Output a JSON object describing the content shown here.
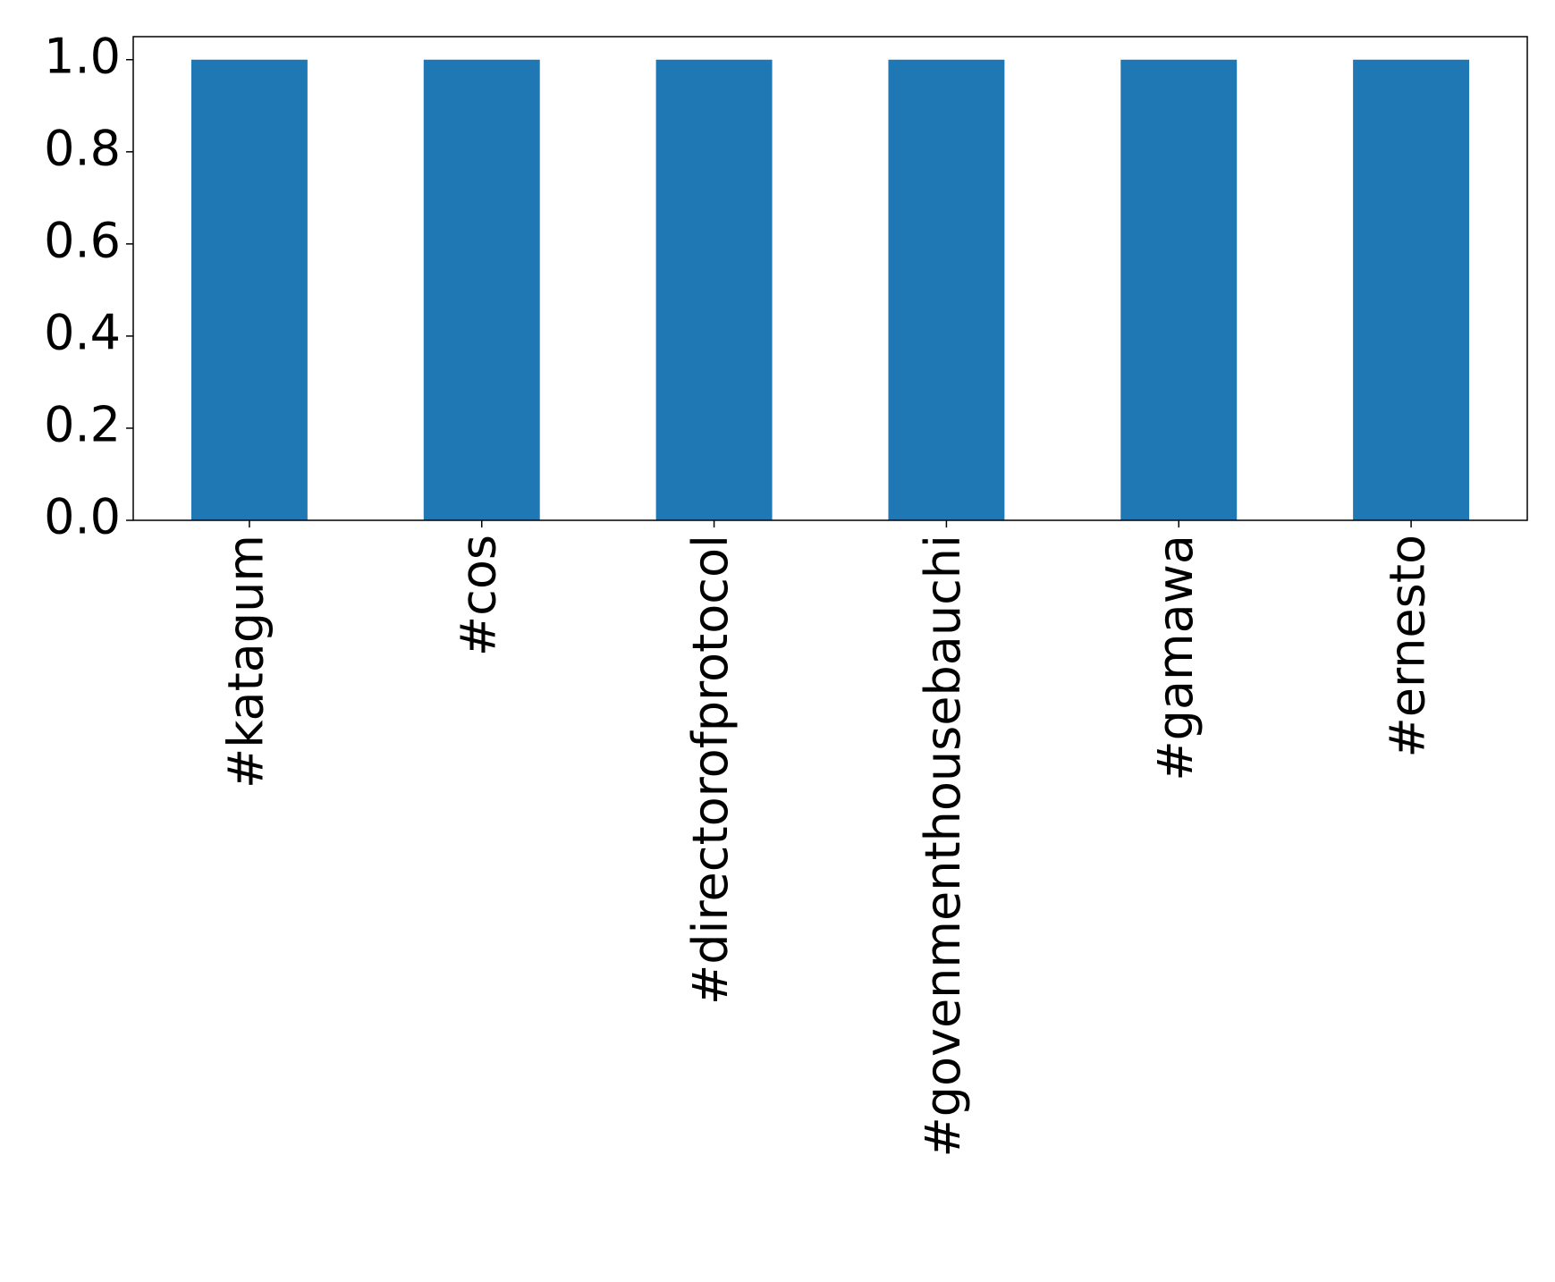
{
  "chart_data": {
    "type": "bar",
    "categories": [
      "#katagum",
      "#cos",
      "#directorofprotocol",
      "#govenmenthousebauchi",
      "#gamawa",
      "#ernesto"
    ],
    "values": [
      1,
      1,
      1,
      1,
      1,
      1
    ],
    "color": "#1f77b4",
    "ylim": [
      0,
      1.05
    ],
    "yticks": [
      {
        "value": 0,
        "label": "0.0"
      },
      0.2,
      0.4,
      0.6,
      0.8,
      {
        "value": 1,
        "label": "1.0"
      }
    ],
    "grid": false
  }
}
